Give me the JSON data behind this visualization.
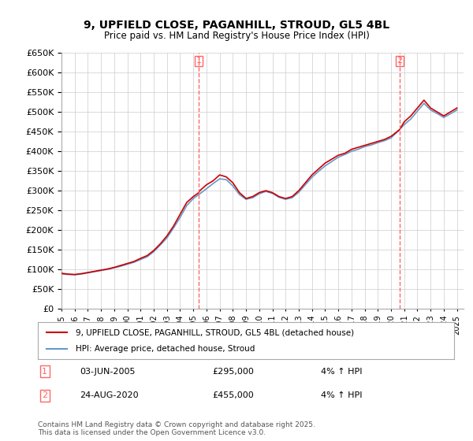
{
  "title": "9, UPFIELD CLOSE, PAGANHILL, STROUD, GL5 4BL",
  "subtitle": "Price paid vs. HM Land Registry's House Price Index (HPI)",
  "ylabel": "",
  "ylim": [
    0,
    650000
  ],
  "yticks": [
    0,
    50000,
    100000,
    150000,
    200000,
    250000,
    300000,
    350000,
    400000,
    450000,
    500000,
    550000,
    600000,
    650000
  ],
  "xlim_start": 1995.0,
  "xlim_end": 2025.5,
  "red_line_color": "#cc0000",
  "blue_line_color": "#6699cc",
  "vline_color": "#ff6666",
  "background_color": "#ffffff",
  "grid_color": "#cccccc",
  "legend_label_red": "9, UPFIELD CLOSE, PAGANHILL, STROUD, GL5 4BL (detached house)",
  "legend_label_blue": "HPI: Average price, detached house, Stroud",
  "purchase1_year": 2005.42,
  "purchase1_label": "1",
  "purchase1_date": "03-JUN-2005",
  "purchase1_price": "£295,000",
  "purchase1_hpi": "4% ↑ HPI",
  "purchase2_year": 2020.65,
  "purchase2_label": "2",
  "purchase2_date": "24-AUG-2020",
  "purchase2_price": "£455,000",
  "purchase2_hpi": "4% ↑ HPI",
  "footer": "Contains HM Land Registry data © Crown copyright and database right 2025.\nThis data is licensed under the Open Government Licence v3.0.",
  "red_data_x": [
    1995.0,
    1995.5,
    1996.0,
    1996.5,
    1997.0,
    1997.5,
    1998.0,
    1998.5,
    1999.0,
    1999.5,
    2000.0,
    2000.5,
    2001.0,
    2001.5,
    2002.0,
    2002.5,
    2003.0,
    2003.5,
    2004.0,
    2004.5,
    2005.0,
    2005.42,
    2005.5,
    2006.0,
    2006.5,
    2007.0,
    2007.5,
    2008.0,
    2008.5,
    2009.0,
    2009.5,
    2010.0,
    2010.5,
    2011.0,
    2011.5,
    2012.0,
    2012.5,
    2013.0,
    2013.5,
    2014.0,
    2014.5,
    2015.0,
    2015.5,
    2016.0,
    2016.5,
    2017.0,
    2017.5,
    2018.0,
    2018.5,
    2019.0,
    2019.5,
    2020.0,
    2020.65,
    2021.0,
    2021.5,
    2022.0,
    2022.5,
    2023.0,
    2023.5,
    2024.0,
    2024.5,
    2025.0
  ],
  "red_data_y": [
    90000,
    88000,
    87000,
    89000,
    92000,
    95000,
    98000,
    101000,
    105000,
    110000,
    115000,
    120000,
    128000,
    135000,
    148000,
    165000,
    185000,
    210000,
    240000,
    270000,
    285000,
    295000,
    300000,
    315000,
    325000,
    340000,
    335000,
    320000,
    295000,
    280000,
    285000,
    295000,
    300000,
    295000,
    285000,
    280000,
    285000,
    300000,
    320000,
    340000,
    355000,
    370000,
    380000,
    390000,
    395000,
    405000,
    410000,
    415000,
    420000,
    425000,
    430000,
    438000,
    455000,
    475000,
    490000,
    510000,
    530000,
    510000,
    500000,
    490000,
    500000,
    510000
  ],
  "blue_data_x": [
    1995.0,
    1995.5,
    1996.0,
    1996.5,
    1997.0,
    1997.5,
    1998.0,
    1998.5,
    1999.0,
    1999.5,
    2000.0,
    2000.5,
    2001.0,
    2001.5,
    2002.0,
    2002.5,
    2003.0,
    2003.5,
    2004.0,
    2004.5,
    2005.0,
    2005.5,
    2006.0,
    2006.5,
    2007.0,
    2007.5,
    2008.0,
    2008.5,
    2009.0,
    2009.5,
    2010.0,
    2010.5,
    2011.0,
    2011.5,
    2012.0,
    2012.5,
    2013.0,
    2013.5,
    2014.0,
    2014.5,
    2015.0,
    2015.5,
    2016.0,
    2016.5,
    2017.0,
    2017.5,
    2018.0,
    2018.5,
    2019.0,
    2019.5,
    2020.0,
    2020.5,
    2021.0,
    2021.5,
    2022.0,
    2022.5,
    2023.0,
    2023.5,
    2024.0,
    2024.5,
    2025.0
  ],
  "blue_data_y": [
    88000,
    87000,
    86000,
    88000,
    91000,
    94000,
    97000,
    100000,
    104000,
    108000,
    113000,
    118000,
    125000,
    132000,
    145000,
    162000,
    180000,
    205000,
    232000,
    262000,
    280000,
    292000,
    305000,
    318000,
    330000,
    328000,
    312000,
    290000,
    278000,
    282000,
    292000,
    298000,
    293000,
    283000,
    278000,
    282000,
    296000,
    315000,
    334000,
    349000,
    363000,
    374000,
    385000,
    392000,
    400000,
    405000,
    412000,
    416000,
    422000,
    427000,
    434000,
    450000,
    468000,
    482000,
    502000,
    522000,
    505000,
    496000,
    486000,
    495000,
    505000
  ]
}
